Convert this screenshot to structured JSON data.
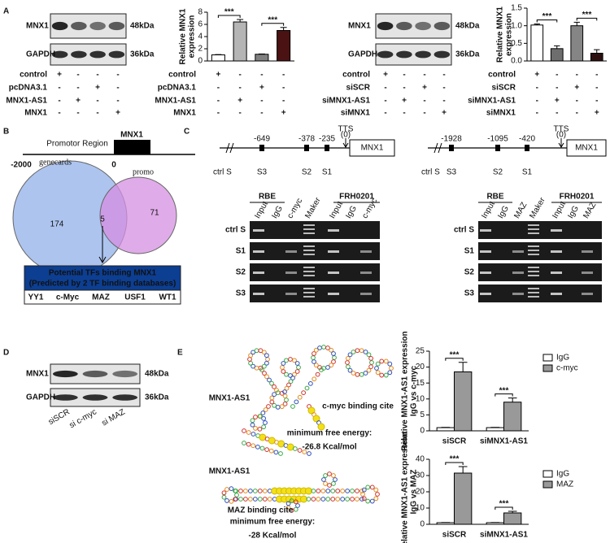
{
  "panel_labels": [
    "A",
    "B",
    "C",
    "D",
    "E"
  ],
  "panel_a": {
    "blots": [
      {
        "bands": [
          {
            "name": "MNX1",
            "size": "48kDa"
          },
          {
            "name": "GAPDH",
            "size": "36kDa"
          }
        ],
        "conditions": [
          {
            "label": "control",
            "signs": [
              "+",
              "-",
              "-",
              "-"
            ]
          },
          {
            "label": "pcDNA3.1",
            "signs": [
              "-",
              "-",
              "+",
              "-"
            ]
          },
          {
            "label": "MNX1-AS1",
            "signs": [
              "-",
              "+",
              "-",
              "-"
            ]
          },
          {
            "label": "MNX1",
            "signs": [
              "-",
              "-",
              "-",
              "+"
            ]
          }
        ]
      },
      {
        "bands": [
          {
            "name": "MNX1",
            "size": "48kDa"
          },
          {
            "name": "GAPDH",
            "size": "36kDa"
          }
        ],
        "conditions": [
          {
            "label": "control",
            "signs": [
              "+",
              "-",
              "-",
              "-"
            ]
          },
          {
            "label": "siSCR",
            "signs": [
              "-",
              "-",
              "+",
              "-"
            ]
          },
          {
            "label": "siMNX1-AS1",
            "signs": [
              "-",
              "+",
              "-",
              "-"
            ]
          },
          {
            "label": "siMNX1",
            "signs": [
              "-",
              "-",
              "-",
              "+"
            ]
          }
        ]
      }
    ]
  },
  "chart_data": [
    {
      "type": "bar",
      "ylabel": [
        "Relative MNX1",
        "expression"
      ],
      "values": [
        1.0,
        6.4,
        1.1,
        5.0
      ],
      "errors": [
        0.05,
        0.4,
        0.05,
        0.5
      ],
      "colors": [
        "#ffffff",
        "#b5b5b5",
        "#808080",
        "#4a1212"
      ],
      "ylim": [
        0,
        8
      ],
      "yticks": [
        0,
        2,
        4,
        6,
        8
      ],
      "annotations": [
        "***",
        "***"
      ],
      "conditions": [
        {
          "label": "control",
          "signs": [
            "+",
            "-",
            "-",
            "-"
          ]
        },
        {
          "label": "pcDNA3.1",
          "signs": [
            "-",
            "-",
            "+",
            "-"
          ]
        },
        {
          "label": "MNX1-AS1",
          "signs": [
            "-",
            "+",
            "-",
            "-"
          ]
        },
        {
          "label": "MNX1",
          "signs": [
            "-",
            "-",
            "-",
            "+"
          ]
        }
      ]
    },
    {
      "type": "bar",
      "ylabel": [
        "Relative MNX1",
        "expression"
      ],
      "values": [
        1.02,
        0.35,
        1.0,
        0.22
      ],
      "errors": [
        0.03,
        0.08,
        0.1,
        0.1
      ],
      "colors": [
        "#ffffff",
        "#6e6e6e",
        "#858585",
        "#2c1010"
      ],
      "ylim": [
        0,
        1.5
      ],
      "yticks": [
        {
          "value": 0,
          "label": "0.0"
        },
        {
          "value": 0.5,
          "label": "0.5"
        },
        {
          "value": 1,
          "label": "1.0"
        },
        {
          "value": 1.5,
          "label": "1.5"
        }
      ],
      "annotations": [
        "***",
        "***"
      ],
      "conditions": [
        {
          "label": "control",
          "signs": [
            "+",
            "-",
            "-",
            "-"
          ]
        },
        {
          "label": "siSCR",
          "signs": [
            "-",
            "-",
            "+",
            "-"
          ]
        },
        {
          "label": "siMNX1-AS1",
          "signs": [
            "-",
            "+",
            "-",
            "-"
          ]
        },
        {
          "label": "siMNX1",
          "signs": [
            "-",
            "-",
            "-",
            "+"
          ]
        }
      ]
    },
    {
      "type": "bar",
      "ylabel": [
        "Relative MNX1-AS1 expression",
        "IgG vs c-myc"
      ],
      "categories": [
        "siSCR",
        "siMNX1-AS1"
      ],
      "series": [
        {
          "name": "IgG",
          "color": "#ffffff",
          "values": [
            1,
            1
          ],
          "errors": [
            0.1,
            0.1
          ]
        },
        {
          "name": "c-myc",
          "color": "#999999",
          "values": [
            18.5,
            9
          ],
          "errors": [
            3,
            1.3
          ]
        }
      ],
      "ylim": [
        0,
        25
      ],
      "yticks": [
        0,
        5,
        10,
        15,
        20,
        25
      ],
      "annotations": [
        "***",
        "***"
      ]
    },
    {
      "type": "bar",
      "ylabel": [
        "Relative MNX1-AS1 expression",
        "IgG vs MAZ"
      ],
      "categories": [
        "siSCR",
        "siMNX1-AS1"
      ],
      "series": [
        {
          "name": "IgG",
          "color": "#ffffff",
          "values": [
            1,
            1
          ],
          "errors": [
            0.1,
            0.1
          ]
        },
        {
          "name": "MAZ",
          "color": "#999999",
          "values": [
            31.5,
            7
          ],
          "errors": [
            4,
            1
          ]
        }
      ],
      "ylim": [
        0,
        40
      ],
      "yticks": [
        0,
        10,
        20,
        30,
        40
      ],
      "annotations": [
        "***",
        "***"
      ]
    }
  ],
  "panel_b": {
    "promoter": {
      "region": "Promotor Region",
      "gene": "MNX1",
      "start": "-2000",
      "end": "0"
    },
    "venn": {
      "sets": [
        {
          "name": "genecards",
          "count": 174,
          "color": "#a9c1ee"
        },
        {
          "name": "promo",
          "count": 71,
          "color": "#d68fe2"
        }
      ],
      "overlap": 5
    },
    "tf_box": {
      "title": "Potential TFs binding MNX1",
      "subtitle": "(Predicted by 2 TF binding databases)",
      "tfs": [
        "YY1",
        "c-Myc",
        "MAZ",
        "USF1",
        "WT1"
      ],
      "tf_colors": [
        "#111111",
        "#e01010",
        "#e01010",
        "#111111",
        "#111111"
      ]
    }
  },
  "panel_c": [
    {
      "sites": [
        {
          "pos": "-649",
          "name": "S3"
        },
        {
          "pos": "-378",
          "name": "S2"
        },
        {
          "pos": "-235",
          "name": "S1"
        }
      ],
      "ctrl": "ctrl S",
      "tts": "TTS",
      "tts_pos": "(0)",
      "gene": "MNX1",
      "gel": {
        "groups": [
          "RBE",
          "FRH0201"
        ],
        "lanes": [
          "Input",
          "IgG",
          "c-myc",
          "Maker",
          "Input",
          "IgG",
          "c-myc"
        ],
        "rows": [
          "ctrl S",
          "S1",
          "S2",
          "S3"
        ]
      }
    },
    {
      "sites": [
        {
          "pos": "-1928",
          "name": "S3"
        },
        {
          "pos": "-1095",
          "name": "S2"
        },
        {
          "pos": "-420",
          "name": "S1"
        }
      ],
      "ctrl": "ctrl S",
      "tts": "TTS",
      "tts_pos": "(0)",
      "gene": "MNX1",
      "gel": {
        "groups": [
          "RBE",
          "FRH0201"
        ],
        "lanes": [
          "Input",
          "IgG",
          "MAZ",
          "Maker",
          "Input",
          "IgG",
          "MAZ"
        ],
        "rows": [
          "ctrl S",
          "S1",
          "S2",
          "S3"
        ]
      }
    }
  ],
  "panel_d": {
    "bands": [
      {
        "name": "MNX1",
        "size": "48kDa"
      },
      {
        "name": "GAPDH",
        "size": "36kDa"
      }
    ],
    "lanes": [
      "siSCR",
      "si c-myc",
      "si MAZ"
    ]
  },
  "panel_e": [
    {
      "rna": "MNX1-AS1",
      "site": "c-myc binding cite",
      "mfe_label": "minimum free energy:",
      "mfe": "-26.8 Kcal/mol"
    },
    {
      "rna": "MNX1-AS1",
      "site": "MAZ binding cite",
      "mfe_label": "minimum free energy:",
      "mfe": "-28 Kcal/mol"
    }
  ]
}
